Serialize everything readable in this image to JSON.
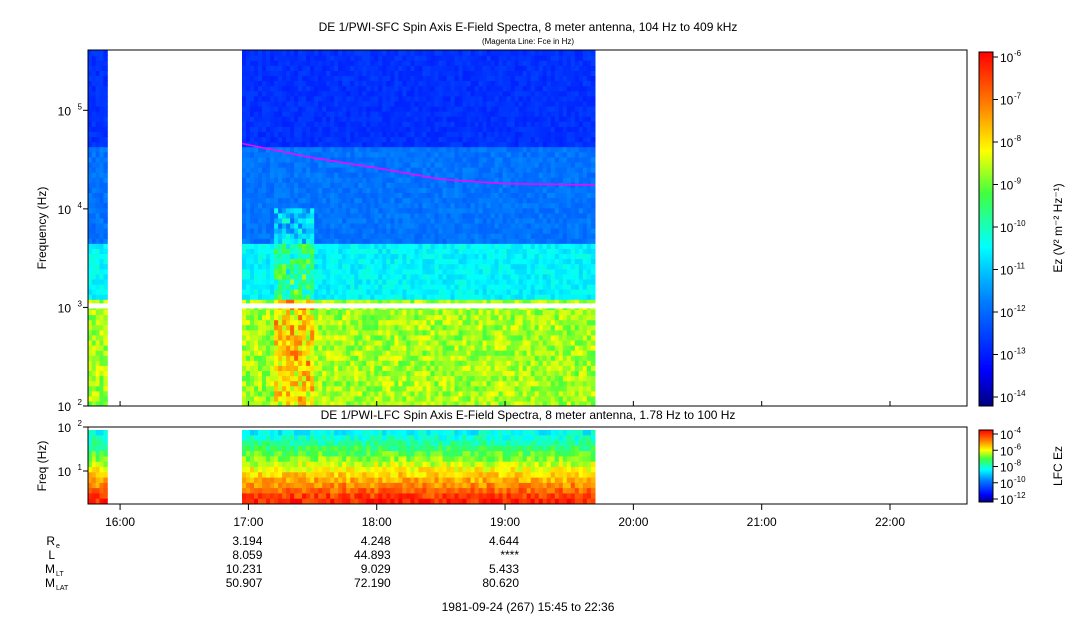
{
  "chart_data": [
    {
      "type": "heatmap",
      "title": "DE 1/PWI-SFC  Spin Axis E-Field Spectra, 8 meter antenna, 104 Hz to 409 kHz",
      "subtitle": "(Magenta Line: Fce in Hz)",
      "ylabel": "Frequency (Hz)",
      "y_scale": "log",
      "ylim": [
        100,
        409000
      ],
      "y_ticks": [
        {
          "v": 100,
          "label": "10",
          "exp": "2"
        },
        {
          "v": 1000,
          "label": "10",
          "exp": "3"
        },
        {
          "v": 10000,
          "label": "10",
          "exp": "4"
        },
        {
          "v": 100000,
          "label": "10",
          "exp": "5"
        }
      ],
      "colorbar_label": "Ez (V² m⁻² Hz⁻¹)",
      "colorbar_ticks": [
        {
          "label": "10",
          "exp": "-6"
        },
        {
          "label": "10",
          "exp": "-7"
        },
        {
          "label": "10",
          "exp": "-8"
        },
        {
          "label": "10",
          "exp": "-9"
        },
        {
          "label": "10",
          "exp": "-10"
        },
        {
          "label": "10",
          "exp": "-11"
        },
        {
          "label": "10",
          "exp": "-12"
        },
        {
          "label": "10",
          "exp": "-13"
        },
        {
          "label": "10",
          "exp": "-14"
        }
      ],
      "data_intervals_hours": [
        [
          15.75,
          15.9
        ],
        [
          16.95,
          19.7
        ]
      ],
      "fce_line": {
        "x": [
          16.95,
          17.5,
          18.0,
          18.5,
          19.0,
          19.7
        ],
        "y": [
          46000,
          33000,
          26000,
          20000,
          18000,
          17500
        ]
      }
    },
    {
      "type": "heatmap",
      "title": "DE 1/PWI-LFC  Spin Axis E-Field Spectra, 8 meter antenna, 1.78 Hz to 100 Hz",
      "ylabel": "Freq (Hz)",
      "y_scale": "log",
      "ylim": [
        1.78,
        100
      ],
      "y_ticks": [
        {
          "v": 10,
          "label": "10",
          "exp": "1"
        },
        {
          "v": 100,
          "label": "10",
          "exp": "2"
        }
      ],
      "colorbar_label": "LFC Ez",
      "colorbar_ticks": [
        {
          "label": "10",
          "exp": "-4"
        },
        {
          "label": "10",
          "exp": "-6"
        },
        {
          "label": "10",
          "exp": "-8"
        },
        {
          "label": "10",
          "exp": "-10"
        },
        {
          "label": "10",
          "exp": "-12"
        }
      ],
      "data_intervals_hours": [
        [
          15.75,
          15.9
        ],
        [
          16.95,
          19.7
        ]
      ]
    }
  ],
  "time_axis": {
    "range_hours": [
      15.75,
      22.6
    ],
    "ticks": [
      {
        "h": 16,
        "label": "16:00"
      },
      {
        "h": 17,
        "label": "17:00"
      },
      {
        "h": 18,
        "label": "18:00"
      },
      {
        "h": 19,
        "label": "19:00"
      },
      {
        "h": 20,
        "label": "20:00"
      },
      {
        "h": 21,
        "label": "21:00"
      },
      {
        "h": 22,
        "label": "22:00"
      }
    ]
  },
  "ephemeris": {
    "rows": [
      {
        "label": "R",
        "sub": "e",
        "values": [
          "3.194",
          "4.248",
          "4.644"
        ]
      },
      {
        "label": "L",
        "sub": "",
        "values": [
          "8.059",
          "44.893",
          "****"
        ]
      },
      {
        "label": "M",
        "sub": "LT",
        "values": [
          "10.231",
          "9.029",
          "5.433"
        ]
      },
      {
        "label": "M",
        "sub": "LAT",
        "values": [
          "50.907",
          "72.190",
          "80.620"
        ]
      }
    ]
  },
  "footer": "1981-09-24 (267) 15:45 to 22:36"
}
